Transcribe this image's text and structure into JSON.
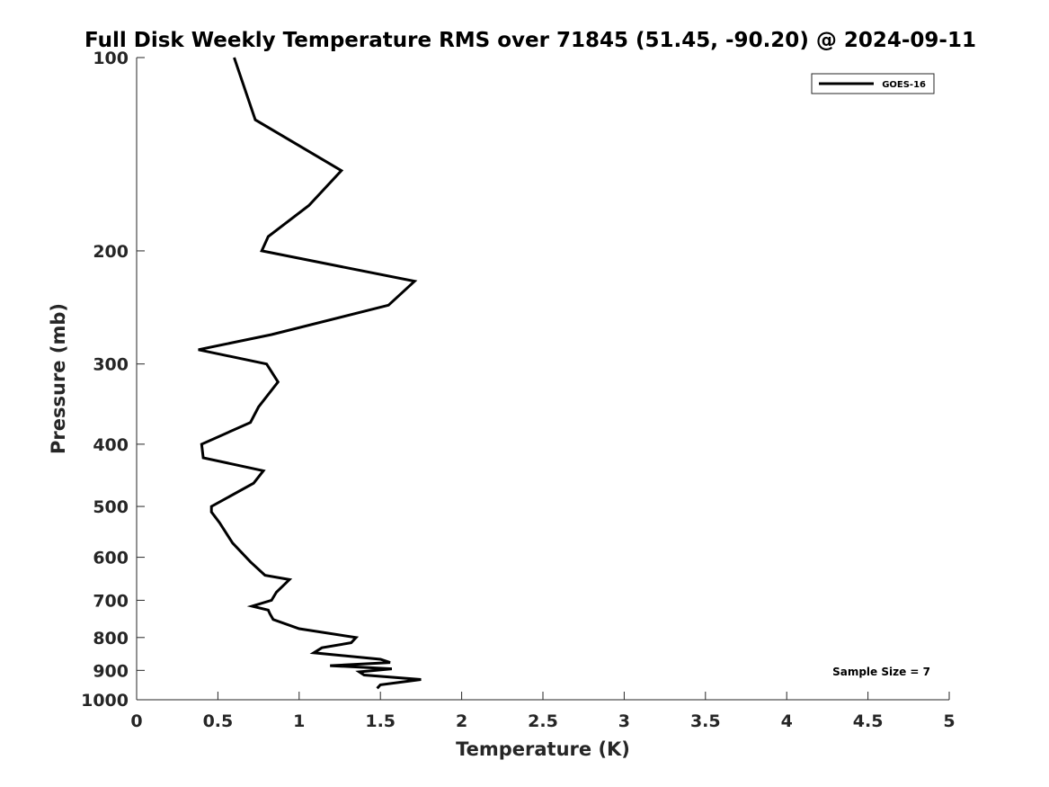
{
  "chart_data": {
    "type": "line",
    "title": "Full Disk Weekly Temperature RMS over 71845 (51.45, -90.20) @ 2024-09-11",
    "xlabel": "Temperature (K)",
    "ylabel": "Pressure (mb)",
    "xlim": [
      0,
      5
    ],
    "ylim": [
      100,
      1000
    ],
    "y_scale": "log",
    "y_reversed": true,
    "x_ticks": [
      "0",
      "0.5",
      "1",
      "1.5",
      "2",
      "2.5",
      "3",
      "3.5",
      "4",
      "4.5",
      "5"
    ],
    "y_ticks": [
      "100",
      "200",
      "300",
      "400",
      "500",
      "600",
      "700",
      "800",
      "900",
      "1000"
    ],
    "grid": false,
    "legend_position": "top-right",
    "annotation": "Sample Size = 7",
    "series": [
      {
        "name": "GOES-16",
        "color": "#000000",
        "points": [
          [
            0.6,
            100
          ],
          [
            0.73,
            125
          ],
          [
            1.26,
            150
          ],
          [
            1.06,
            170
          ],
          [
            0.81,
            190
          ],
          [
            0.77,
            200
          ],
          [
            1.71,
            223
          ],
          [
            1.55,
            243
          ],
          [
            0.83,
            270
          ],
          [
            0.38,
            285
          ],
          [
            0.8,
            300
          ],
          [
            0.87,
            320
          ],
          [
            0.75,
            350
          ],
          [
            0.7,
            370
          ],
          [
            0.4,
            400
          ],
          [
            0.41,
            420
          ],
          [
            0.78,
            440
          ],
          [
            0.72,
            460
          ],
          [
            0.46,
            500
          ],
          [
            0.46,
            510
          ],
          [
            0.51,
            530
          ],
          [
            0.59,
            570
          ],
          [
            0.7,
            610
          ],
          [
            0.79,
            640
          ],
          [
            0.94,
            650
          ],
          [
            0.86,
            680
          ],
          [
            0.83,
            700
          ],
          [
            0.71,
            715
          ],
          [
            0.81,
            725
          ],
          [
            0.82,
            735
          ],
          [
            0.84,
            750
          ],
          [
            1.0,
            775
          ],
          [
            1.35,
            800
          ],
          [
            1.32,
            815
          ],
          [
            1.14,
            830
          ],
          [
            1.09,
            845
          ],
          [
            1.5,
            865
          ],
          [
            1.56,
            875
          ],
          [
            1.19,
            885
          ],
          [
            1.57,
            895
          ],
          [
            1.37,
            905
          ],
          [
            1.4,
            915
          ],
          [
            1.75,
            930
          ],
          [
            1.5,
            948
          ],
          [
            1.48,
            960
          ]
        ]
      }
    ]
  }
}
